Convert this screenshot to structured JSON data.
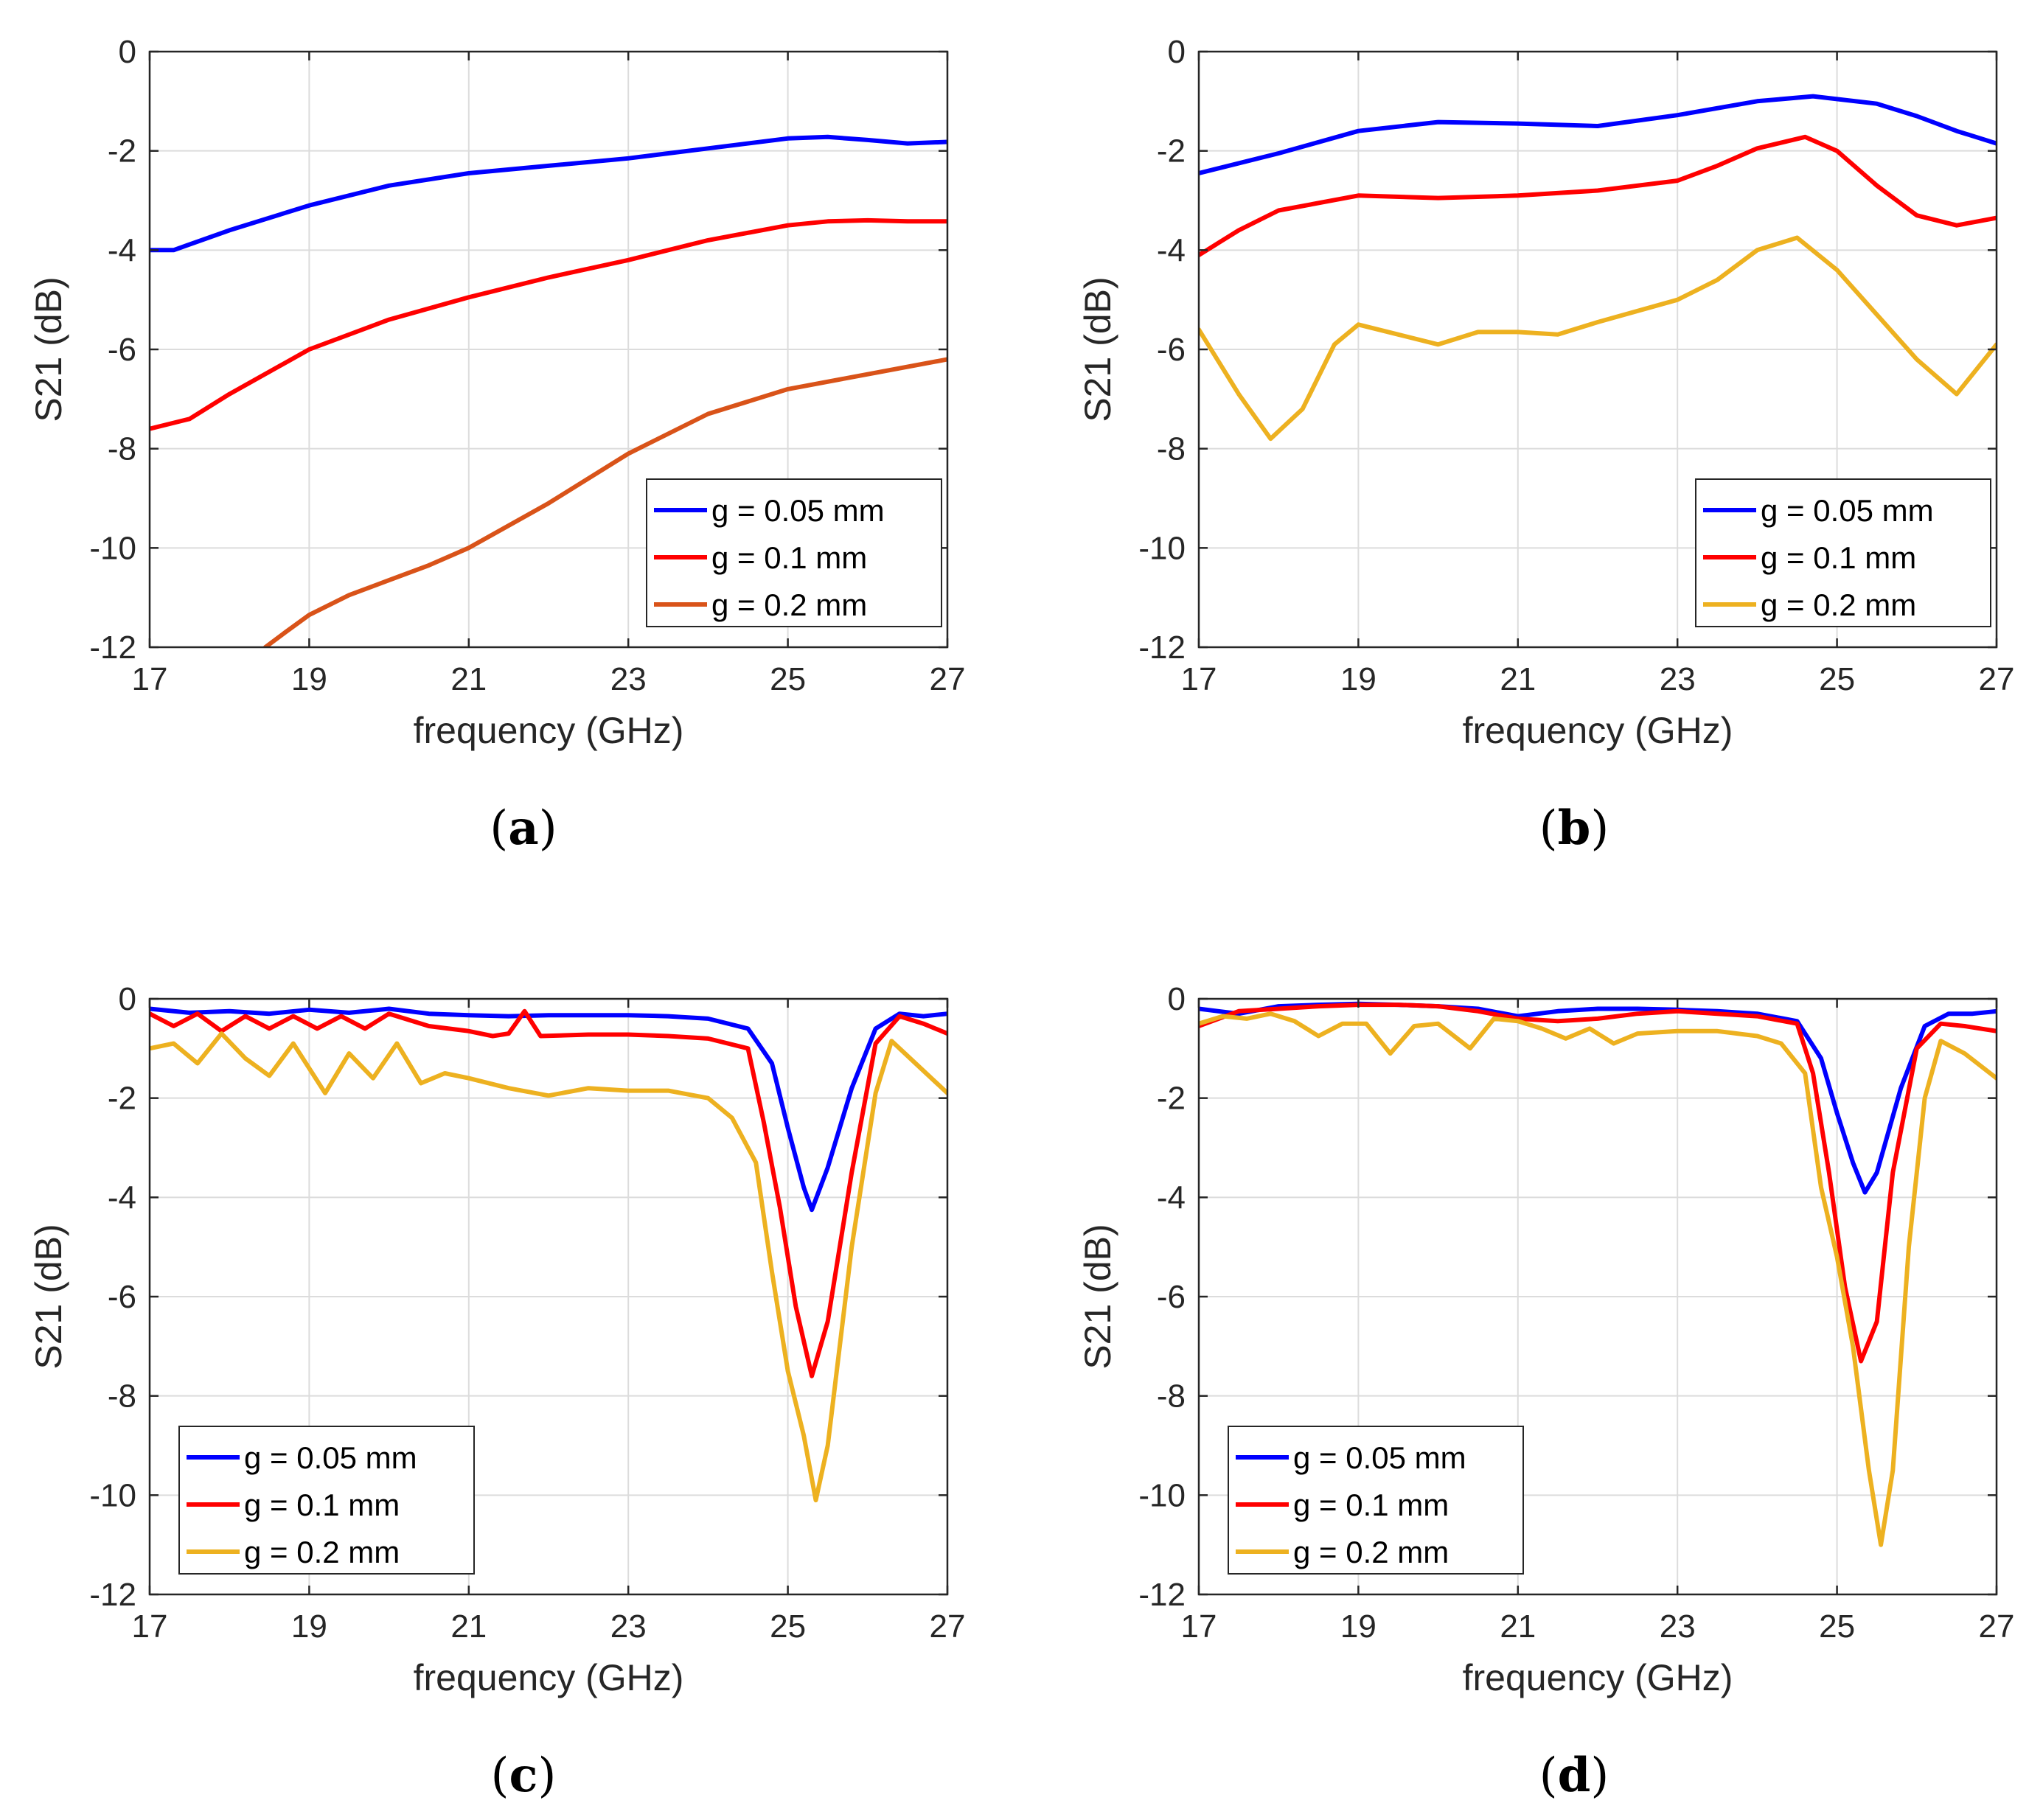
{
  "chart_data": [
    {
      "panel": "a",
      "type": "line",
      "xlabel": "frequency (GHz)",
      "ylabel": "S21 (dB)",
      "xlim": [
        17,
        27
      ],
      "ylim": [
        -12,
        0
      ],
      "xticks": [
        17,
        19,
        21,
        23,
        25,
        27
      ],
      "yticks": [
        0,
        -2,
        -4,
        -6,
        -8,
        -10,
        -12
      ],
      "grid": true,
      "legend_position": "bottom-right",
      "series": [
        {
          "name": "g = 0.05 mm",
          "color": "#0000ff",
          "x": [
            17,
            17.3,
            18,
            19,
            20,
            21,
            22,
            23,
            24,
            25,
            25.5,
            26,
            26.5,
            27
          ],
          "y": [
            -4.0,
            -4.0,
            -3.6,
            -3.1,
            -2.7,
            -2.45,
            -2.3,
            -2.15,
            -1.95,
            -1.75,
            -1.72,
            -1.78,
            -1.85,
            -1.82
          ]
        },
        {
          "name": "g = 0.1 mm",
          "color": "#ff0000",
          "x": [
            17,
            17.5,
            18,
            19,
            20,
            21,
            22,
            23,
            24,
            25,
            25.5,
            26,
            26.5,
            27
          ],
          "y": [
            -7.6,
            -7.4,
            -6.9,
            -6.0,
            -5.4,
            -4.95,
            -4.55,
            -4.2,
            -3.8,
            -3.5,
            -3.42,
            -3.4,
            -3.42,
            -3.42
          ]
        },
        {
          "name": "g = 0.2 mm",
          "color": "#d95319",
          "x": [
            18.45,
            18.7,
            19,
            19.5,
            20,
            20.5,
            21,
            22,
            23,
            24,
            25,
            26,
            27
          ],
          "y": [
            -12.0,
            -11.7,
            -11.35,
            -10.95,
            -10.65,
            -10.35,
            -10.0,
            -9.1,
            -8.1,
            -7.3,
            -6.8,
            -6.5,
            -6.2
          ]
        }
      ]
    },
    {
      "panel": "b",
      "type": "line",
      "xlabel": "frequency (GHz)",
      "ylabel": "S21 (dB)",
      "xlim": [
        17,
        27
      ],
      "ylim": [
        -12,
        0
      ],
      "xticks": [
        17,
        19,
        21,
        23,
        25,
        27
      ],
      "yticks": [
        0,
        -2,
        -4,
        -6,
        -8,
        -10,
        -12
      ],
      "grid": true,
      "legend_position": "bottom-right",
      "series": [
        {
          "name": "g = 0.05 mm",
          "color": "#0000ff",
          "x": [
            17,
            18,
            19,
            20,
            21,
            22,
            23,
            24,
            24.7,
            25.5,
            26,
            26.5,
            27
          ],
          "y": [
            -2.45,
            -2.05,
            -1.6,
            -1.42,
            -1.45,
            -1.5,
            -1.28,
            -1.0,
            -0.9,
            -1.05,
            -1.3,
            -1.6,
            -1.85
          ]
        },
        {
          "name": "g = 0.1 mm",
          "color": "#ff0000",
          "x": [
            17,
            17.5,
            18,
            19,
            20,
            21,
            22,
            23,
            23.5,
            24,
            24.6,
            25,
            25.5,
            26,
            26.5,
            27
          ],
          "y": [
            -4.1,
            -3.6,
            -3.2,
            -2.9,
            -2.95,
            -2.9,
            -2.8,
            -2.6,
            -2.3,
            -1.95,
            -1.72,
            -2.0,
            -2.7,
            -3.3,
            -3.5,
            -3.35
          ]
        },
        {
          "name": "g = 0.2 mm",
          "color": "#edb120",
          "x": [
            17,
            17.5,
            17.9,
            18.3,
            18.7,
            19,
            19.5,
            20,
            20.5,
            21,
            21.5,
            22,
            23,
            23.5,
            24,
            24.5,
            25,
            25.5,
            26,
            26.5,
            27
          ],
          "y": [
            -5.6,
            -6.9,
            -7.8,
            -7.2,
            -5.9,
            -5.5,
            -5.7,
            -5.9,
            -5.65,
            -5.65,
            -5.7,
            -5.45,
            -5.0,
            -4.6,
            -4.0,
            -3.75,
            -4.4,
            -5.3,
            -6.2,
            -6.9,
            -5.9
          ]
        }
      ]
    },
    {
      "panel": "c",
      "type": "line",
      "xlabel": "frequency (GHz)",
      "ylabel": "S21 (dB)",
      "xlim": [
        17,
        27
      ],
      "ylim": [
        -12,
        0
      ],
      "xticks": [
        17,
        19,
        21,
        23,
        25,
        27
      ],
      "yticks": [
        0,
        -2,
        -4,
        -6,
        -8,
        -10,
        -12
      ],
      "grid": true,
      "legend_position": "bottom-left",
      "series": [
        {
          "name": "g = 0.05 mm",
          "color": "#0000ff",
          "x": [
            17,
            17.5,
            18,
            18.5,
            19,
            19.5,
            20,
            20.5,
            21,
            21.5,
            22,
            22.5,
            23,
            23.5,
            24,
            24.5,
            24.8,
            25,
            25.2,
            25.3,
            25.5,
            25.8,
            26.1,
            26.4,
            26.7,
            27
          ],
          "y": [
            -0.2,
            -0.28,
            -0.25,
            -0.3,
            -0.22,
            -0.28,
            -0.2,
            -0.3,
            -0.33,
            -0.35,
            -0.33,
            -0.33,
            -0.33,
            -0.35,
            -0.4,
            -0.6,
            -1.3,
            -2.6,
            -3.8,
            -4.25,
            -3.4,
            -1.8,
            -0.6,
            -0.3,
            -0.35,
            -0.3
          ]
        },
        {
          "name": "g = 0.1 mm",
          "color": "#ff0000",
          "x": [
            17,
            17.3,
            17.6,
            17.9,
            18.2,
            18.5,
            18.8,
            19.1,
            19.4,
            19.7,
            20,
            20.5,
            21,
            21.3,
            21.5,
            21.7,
            21.9,
            22.5,
            23,
            23.5,
            24,
            24.5,
            24.7,
            24.9,
            25.1,
            25.3,
            25.5,
            25.8,
            26.1,
            26.4,
            26.7,
            27
          ],
          "y": [
            -0.3,
            -0.55,
            -0.3,
            -0.65,
            -0.35,
            -0.6,
            -0.35,
            -0.6,
            -0.35,
            -0.6,
            -0.3,
            -0.55,
            -0.65,
            -0.75,
            -0.7,
            -0.25,
            -0.75,
            -0.72,
            -0.72,
            -0.75,
            -0.8,
            -1.0,
            -2.5,
            -4.2,
            -6.2,
            -7.6,
            -6.5,
            -3.5,
            -0.9,
            -0.35,
            -0.5,
            -0.7
          ]
        },
        {
          "name": "g = 0.2 mm",
          "color": "#edb120",
          "x": [
            17,
            17.3,
            17.6,
            17.9,
            18.2,
            18.5,
            18.8,
            19.2,
            19.5,
            19.8,
            20.1,
            20.4,
            20.7,
            21,
            21.5,
            22,
            22.5,
            23,
            23.5,
            24,
            24.3,
            24.6,
            24.8,
            25,
            25.2,
            25.35,
            25.5,
            25.8,
            26.1,
            26.3,
            26.6,
            27
          ],
          "y": [
            -1.0,
            -0.9,
            -1.3,
            -0.7,
            -1.2,
            -1.55,
            -0.9,
            -1.9,
            -1.1,
            -1.6,
            -0.9,
            -1.7,
            -1.5,
            -1.6,
            -1.8,
            -1.95,
            -1.8,
            -1.85,
            -1.85,
            -2.0,
            -2.4,
            -3.3,
            -5.5,
            -7.5,
            -8.8,
            -10.1,
            -9.0,
            -5.0,
            -1.9,
            -0.85,
            -1.3,
            -1.9
          ]
        }
      ]
    },
    {
      "panel": "d",
      "type": "line",
      "xlabel": "frequency (GHz)",
      "ylabel": "S21 (dB)",
      "xlim": [
        17,
        27
      ],
      "ylim": [
        -12,
        0
      ],
      "xticks": [
        17,
        19,
        21,
        23,
        25,
        27
      ],
      "yticks": [
        0,
        -2,
        -4,
        -6,
        -8,
        -10,
        -12
      ],
      "grid": true,
      "legend_position": "bottom-left",
      "series": [
        {
          "name": "g = 0.05 mm",
          "color": "#0000ff",
          "x": [
            17,
            17.5,
            18,
            18.5,
            19,
            19.5,
            20,
            20.5,
            21,
            21.5,
            22,
            22.5,
            23,
            23.5,
            24,
            24.5,
            24.8,
            25,
            25.2,
            25.35,
            25.5,
            25.8,
            26.1,
            26.4,
            26.7,
            27
          ],
          "y": [
            -0.2,
            -0.3,
            -0.15,
            -0.12,
            -0.1,
            -0.12,
            -0.15,
            -0.2,
            -0.35,
            -0.25,
            -0.2,
            -0.2,
            -0.22,
            -0.25,
            -0.3,
            -0.45,
            -1.2,
            -2.3,
            -3.3,
            -3.9,
            -3.5,
            -1.8,
            -0.55,
            -0.3,
            -0.3,
            -0.25
          ]
        },
        {
          "name": "g = 0.1 mm",
          "color": "#ff0000",
          "x": [
            17,
            17.5,
            18,
            18.5,
            19,
            19.5,
            20,
            20.5,
            21,
            21.5,
            22,
            22.5,
            23,
            23.5,
            24,
            24.5,
            24.7,
            24.9,
            25.1,
            25.3,
            25.5,
            25.7,
            26,
            26.3,
            26.6,
            27
          ],
          "y": [
            -0.55,
            -0.25,
            -0.2,
            -0.15,
            -0.12,
            -0.12,
            -0.15,
            -0.25,
            -0.4,
            -0.45,
            -0.4,
            -0.3,
            -0.25,
            -0.3,
            -0.35,
            -0.5,
            -1.5,
            -3.5,
            -5.8,
            -7.3,
            -6.5,
            -3.5,
            -1.0,
            -0.5,
            -0.55,
            -0.65
          ]
        },
        {
          "name": "g = 0.2 mm",
          "color": "#edb120",
          "x": [
            17,
            17.3,
            17.6,
            17.9,
            18.2,
            18.5,
            18.8,
            19.1,
            19.4,
            19.7,
            20,
            20.4,
            20.7,
            21,
            21.3,
            21.6,
            21.9,
            22.2,
            22.5,
            23,
            23.5,
            24,
            24.3,
            24.6,
            24.8,
            25,
            25.2,
            25.4,
            25.55,
            25.7,
            25.9,
            26.1,
            26.3,
            26.6,
            27
          ],
          "y": [
            -0.5,
            -0.35,
            -0.4,
            -0.3,
            -0.45,
            -0.75,
            -0.5,
            -0.5,
            -1.1,
            -0.55,
            -0.5,
            -1.0,
            -0.4,
            -0.45,
            -0.6,
            -0.8,
            -0.6,
            -0.9,
            -0.7,
            -0.65,
            -0.65,
            -0.75,
            -0.9,
            -1.5,
            -3.8,
            -5.2,
            -7.0,
            -9.5,
            -11.0,
            -9.5,
            -5.0,
            -2.0,
            -0.85,
            -1.1,
            -1.6
          ]
        }
      ]
    }
  ]
}
